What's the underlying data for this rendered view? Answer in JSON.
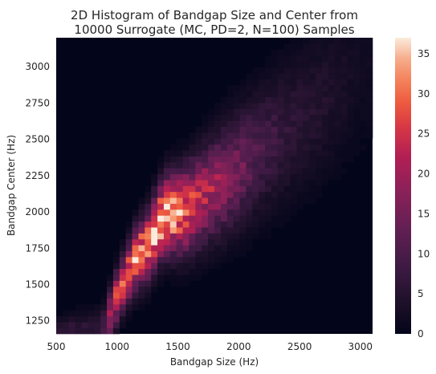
{
  "chart_data": {
    "type": "heatmap",
    "title_lines": [
      "2D Histogram of Bandgap Size and Center from",
      "10000 Surrogate (MC, PD=2, N=100) Samples"
    ],
    "xlabel": "Bandgap Size (Hz)",
    "ylabel": "Bandgap Center (Hz)",
    "xlim": [
      500,
      3100
    ],
    "ylim": [
      1160,
      3200
    ],
    "x_ticks": [
      500,
      1000,
      1500,
      2000,
      2500,
      3000
    ],
    "y_ticks": [
      1250,
      1500,
      1750,
      2000,
      2250,
      2500,
      2750,
      3000
    ],
    "bins": 50,
    "colorbar": {
      "min": 0,
      "max": 37,
      "ticks": [
        0,
        5,
        10,
        15,
        20,
        25,
        30,
        35
      ]
    },
    "density_ridge": {
      "description_points": [
        {
          "x": 880,
          "y": 1190,
          "count": 6
        },
        {
          "x": 930,
          "y": 1260,
          "count": 20
        },
        {
          "x": 960,
          "y": 1340,
          "count": 25
        },
        {
          "x": 1020,
          "y": 1460,
          "count": 24
        },
        {
          "x": 1080,
          "y": 1560,
          "count": 27
        },
        {
          "x": 1150,
          "y": 1670,
          "count": 32
        },
        {
          "x": 1260,
          "y": 1780,
          "count": 33
        },
        {
          "x": 1330,
          "y": 1900,
          "count": 34
        },
        {
          "x": 1400,
          "y": 1980,
          "count": 36
        },
        {
          "x": 1550,
          "y": 2000,
          "count": 30
        },
        {
          "x": 1720,
          "y": 2110,
          "count": 22
        },
        {
          "x": 1900,
          "y": 2230,
          "count": 18
        },
        {
          "x": 2150,
          "y": 2400,
          "count": 10
        },
        {
          "x": 2450,
          "y": 2600,
          "count": 6
        },
        {
          "x": 2750,
          "y": 2800,
          "count": 4
        },
        {
          "x": 3000,
          "y": 3000,
          "count": 2
        }
      ]
    },
    "colors": {
      "background": "#ffffff",
      "empty_bin": "#03051a",
      "colormap": "rocket"
    }
  }
}
